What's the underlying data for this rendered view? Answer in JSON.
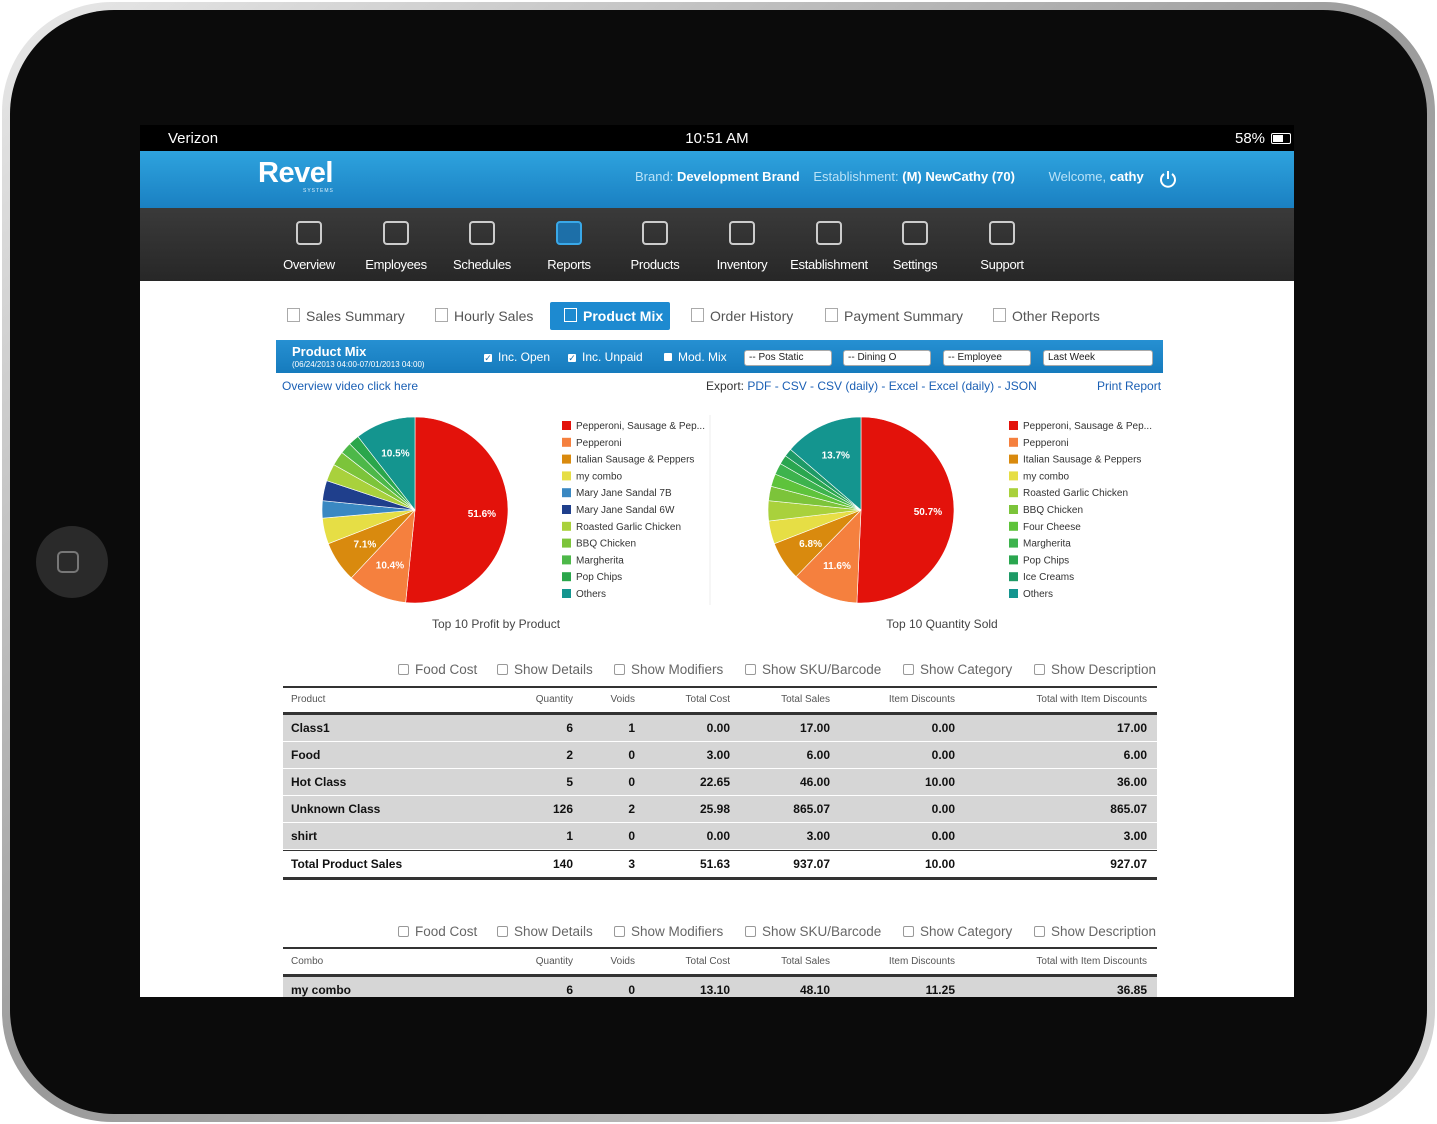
{
  "status_bar": {
    "carrier": "Verizon",
    "time": "10:51 AM",
    "battery": "58%"
  },
  "header": {
    "logo": "Revel",
    "logo_sub": "SYSTEMS",
    "brand_label": "Brand:",
    "brand": "Development Brand",
    "establishment_label": "Establishment:",
    "establishment": "(M) NewCathy (70)",
    "welcome_label": "Welcome,",
    "user": "cathy"
  },
  "nav": {
    "items": [
      "Overview",
      "Employees",
      "Schedules",
      "Reports",
      "Products",
      "Inventory",
      "Establishment",
      "Settings",
      "Support"
    ],
    "active": 3
  },
  "tabs": {
    "items": [
      "Sales Summary",
      "Hourly Sales",
      "Product Mix",
      "Order History",
      "Payment Summary",
      "Other Reports"
    ],
    "active": 2
  },
  "report": {
    "title": "Product Mix",
    "range": "(06/24/2013 04:00-07/01/2013 04:00)",
    "options": [
      {
        "label": "Inc. Open",
        "checked": true
      },
      {
        "label": "Inc. Unpaid",
        "checked": true
      },
      {
        "label": "Mod. Mix",
        "checked": false
      }
    ],
    "selects": [
      "-- Pos Static",
      "-- Dining O",
      "-- Employee",
      "Last Week"
    ],
    "video_link": "Overview video click here",
    "export_label": "Export:",
    "exports": [
      "PDF",
      "CSV",
      "CSV (daily)",
      "Excel",
      "Excel (daily)",
      "JSON"
    ],
    "print": "Print Report"
  },
  "chart_data": [
    {
      "type": "pie",
      "title": "Top 10 Profit by Product",
      "categories": [
        "Pepperoni, Sausage & Pep...",
        "Pepperoni",
        "Italian Sausage & Peppers",
        "my combo",
        "Mary Jane Sandal 7B",
        "Mary Jane Sandal 6W",
        "Roasted Garlic Chicken",
        "BBQ Chicken",
        "Margherita",
        "Pop Chips",
        "Others"
      ],
      "values": [
        51.6,
        10.4,
        7.1,
        4.5,
        3.0,
        3.5,
        3.0,
        2.5,
        2.0,
        1.9,
        10.5
      ],
      "value_labels": [
        "51.6%",
        "10.4%",
        "7.1%",
        null,
        null,
        null,
        null,
        null,
        null,
        null,
        "10.5%"
      ],
      "colors": [
        "#e3120b",
        "#f5803e",
        "#d98a0e",
        "#e6de45",
        "#3a88c2",
        "#1f3f8c",
        "#a9d13c",
        "#7cc43a",
        "#4db849",
        "#2aa64b",
        "#14958f"
      ]
    },
    {
      "type": "pie",
      "title": "Top 10 Quantity Sold",
      "categories": [
        "Pepperoni, Sausage & Pep...",
        "Pepperoni",
        "Italian Sausage & Peppers",
        "my combo",
        "Roasted Garlic Chicken",
        "BBQ Chicken",
        "Four Cheese",
        "Margherita",
        "Pop Chips",
        "Ice Creams",
        "Others"
      ],
      "values": [
        50.7,
        11.6,
        6.8,
        4.0,
        3.5,
        2.5,
        2.2,
        2.0,
        1.6,
        1.4,
        13.7
      ],
      "value_labels": [
        "50.7%",
        "11.6%",
        "6.8%",
        null,
        null,
        null,
        null,
        null,
        null,
        null,
        "13.7%"
      ],
      "colors": [
        "#e3120b",
        "#f5803e",
        "#d98a0e",
        "#e6de45",
        "#a9d13c",
        "#7cc43a",
        "#5ec33b",
        "#3db34d",
        "#2aa64f",
        "#1e9a66",
        "#14958f"
      ]
    }
  ],
  "filters": [
    "Food Cost",
    "Show Details",
    "Show Modifiers",
    "Show SKU/Barcode",
    "Show Category",
    "Show Description"
  ],
  "product_table": {
    "columns": [
      "Product",
      "Quantity",
      "Voids",
      "Total Cost",
      "Total Sales",
      "Item Discounts",
      "Total with Item Discounts"
    ],
    "rows": [
      [
        "Class1",
        "6",
        "1",
        "0.00",
        "17.00",
        "0.00",
        "17.00"
      ],
      [
        "Food",
        "2",
        "0",
        "3.00",
        "6.00",
        "0.00",
        "6.00"
      ],
      [
        "Hot Class",
        "5",
        "0",
        "22.65",
        "46.00",
        "10.00",
        "36.00"
      ],
      [
        "Unknown Class",
        "126",
        "2",
        "25.98",
        "865.07",
        "0.00",
        "865.07"
      ],
      [
        "shirt",
        "1",
        "0",
        "0.00",
        "3.00",
        "0.00",
        "3.00"
      ]
    ],
    "total": [
      "Total Product Sales",
      "140",
      "3",
      "51.63",
      "937.07",
      "10.00",
      "927.07"
    ]
  },
  "combo_table": {
    "columns": [
      "Combo",
      "Quantity",
      "Voids",
      "Total Cost",
      "Total Sales",
      "Item Discounts",
      "Total with Item Discounts"
    ],
    "rows": [
      [
        "my combo",
        "6",
        "0",
        "13.10",
        "48.10",
        "11.25",
        "36.85"
      ]
    ]
  }
}
